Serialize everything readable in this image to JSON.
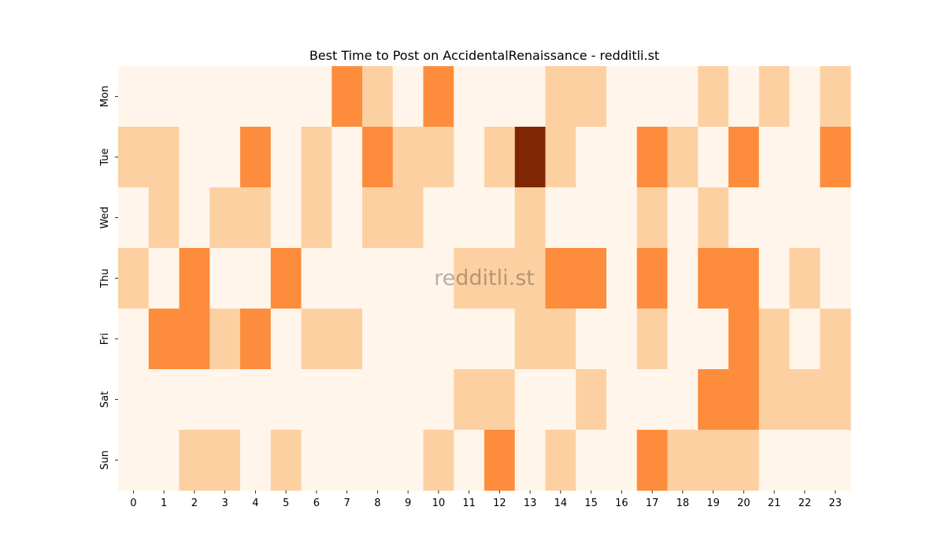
{
  "chart_data": {
    "type": "heatmap",
    "title": "Best Time to Post on AccidentalRenaissance - redditli.st",
    "watermark": "redditli.st",
    "xlabel": "",
    "ylabel": "",
    "x": [
      "0",
      "1",
      "2",
      "3",
      "4",
      "5",
      "6",
      "7",
      "8",
      "9",
      "10",
      "11",
      "12",
      "13",
      "14",
      "15",
      "16",
      "17",
      "18",
      "19",
      "20",
      "21",
      "22",
      "23"
    ],
    "y": [
      "Mon",
      "Tue",
      "Wed",
      "Thu",
      "Fri",
      "Sat",
      "Sun"
    ],
    "values": [
      [
        0,
        0,
        0,
        0,
        0,
        0,
        0,
        2,
        1,
        0,
        2,
        0,
        0,
        0,
        1,
        1,
        0,
        0,
        0,
        1,
        0,
        1,
        0,
        1
      ],
      [
        1,
        1,
        0,
        0,
        2,
        0,
        1,
        0,
        2,
        1,
        1,
        0,
        1,
        5,
        1,
        0,
        0,
        2,
        1,
        0,
        2,
        0,
        0,
        2
      ],
      [
        0,
        1,
        0,
        1,
        1,
        0,
        1,
        0,
        1,
        1,
        0,
        0,
        0,
        1,
        0,
        0,
        0,
        1,
        0,
        1,
        0,
        0,
        0,
        0
      ],
      [
        1,
        0,
        2,
        0,
        0,
        2,
        0,
        0,
        0,
        0,
        0,
        1,
        1,
        1,
        2,
        2,
        0,
        2,
        0,
        2,
        2,
        0,
        1,
        0
      ],
      [
        0,
        2,
        3,
        1,
        2,
        0,
        1,
        1,
        0,
        0,
        0,
        0,
        0,
        1,
        1,
        0,
        0,
        1,
        0,
        0,
        2,
        1,
        0,
        1
      ],
      [
        0,
        0,
        0,
        0,
        0,
        0,
        0,
        0,
        0,
        0,
        0,
        1,
        1,
        0,
        0,
        1,
        0,
        0,
        0,
        2,
        2,
        1,
        1,
        1
      ],
      [
        0,
        0,
        1,
        1,
        0,
        1,
        0,
        0,
        0,
        0,
        1,
        0,
        2,
        0,
        1,
        0,
        0,
        3,
        1,
        1,
        1,
        0,
        0,
        0
      ]
    ],
    "colormap": [
      "#fff5eb",
      "#fdd0a2",
      "#fd8d3c",
      "#fd8d3c",
      "#d94801",
      "#7f2704"
    ],
    "vmin": 0,
    "vmax": 5,
    "colorbar": false,
    "grid": false
  }
}
